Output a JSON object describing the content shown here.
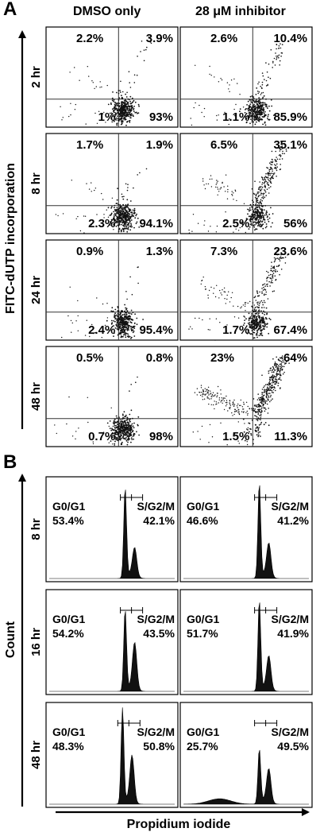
{
  "figure": {
    "panel_a": {
      "letter": "A",
      "columns": [
        "DMSO only",
        "28 μM inhibitor"
      ],
      "y_axis_label": "FITC-dUTP incorporation",
      "rows": [
        {
          "time": "2 hr",
          "panels": [
            {
              "ul": "2.2%",
              "ur": "3.9%",
              "ll": "1%",
              "lr": "93%"
            },
            {
              "ul": "2.6%",
              "ur": "10.4%",
              "ll": "1.1%",
              "lr": "85.9%"
            }
          ]
        },
        {
          "time": "8 hr",
          "panels": [
            {
              "ul": "1.7%",
              "ur": "1.9%",
              "ll": "2.3%",
              "lr": "94.1%"
            },
            {
              "ul": "6.5%",
              "ur": "35.1%",
              "ll": "2.5%",
              "lr": "56%"
            }
          ]
        },
        {
          "time": "24 hr",
          "panels": [
            {
              "ul": "0.9%",
              "ur": "1.3%",
              "ll": "2.4%",
              "lr": "95.4%"
            },
            {
              "ul": "7.3%",
              "ur": "23.6%",
              "ll": "1.7%",
              "lr": "67.4%"
            }
          ]
        },
        {
          "time": "48 hr",
          "panels": [
            {
              "ul": "0.5%",
              "ur": "0.8%",
              "ll": "0.7%",
              "lr": "98%"
            },
            {
              "ul": "23%",
              "ur": "64%",
              "ll": "1.5%",
              "lr": "11.3%"
            }
          ]
        }
      ]
    },
    "panel_b": {
      "letter": "B",
      "y_axis_label": "Count",
      "x_axis_label": "Propidium iodide",
      "gate_labels": [
        "G0/G1",
        "S/G2/M"
      ],
      "rows": [
        {
          "time": "8 hr",
          "panels": [
            {
              "g0g1": "53.4%",
              "sg2m": "42.1%"
            },
            {
              "g0g1": "46.6%",
              "sg2m": "41.2%"
            }
          ]
        },
        {
          "time": "16 hr",
          "panels": [
            {
              "g0g1": "54.2%",
              "sg2m": "43.5%"
            },
            {
              "g0g1": "51.7%",
              "sg2m": "41.9%"
            }
          ]
        },
        {
          "time": "48 hr",
          "panels": [
            {
              "g0g1": "48.3%",
              "sg2m": "50.8%"
            },
            {
              "g0g1": "25.7%",
              "sg2m": "49.5%"
            }
          ]
        }
      ]
    }
  }
}
